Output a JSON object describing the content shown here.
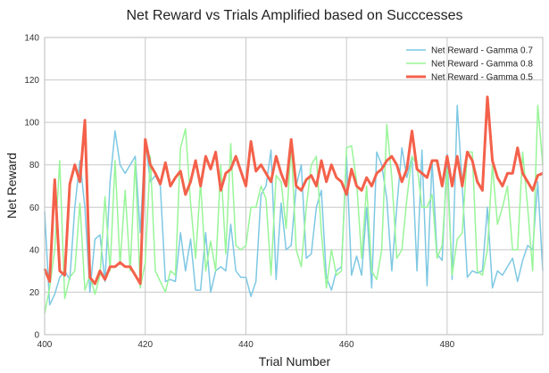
{
  "chart_data": {
    "type": "line",
    "title": "Net Reward vs Trials Amplified based on Succcesses",
    "xlabel": "Trial Number",
    "ylabel": "Net Reward",
    "xlim": [
      400,
      499
    ],
    "ylim": [
      0,
      140
    ],
    "xticks": [
      400,
      420,
      440,
      460,
      480
    ],
    "yticks": [
      0,
      20,
      40,
      60,
      80,
      100,
      120,
      140
    ],
    "grid": true,
    "legend_position": "top-right",
    "x_start": 400,
    "series": [
      {
        "name": "Net Reward - Gamma 0.7",
        "color": "#7ec8e3",
        "values": [
          58,
          14,
          19,
          27,
          30,
          26,
          60,
          82,
          60,
          20,
          45,
          47,
          25,
          72,
          96,
          80,
          76,
          80,
          84,
          48,
          92,
          72,
          75,
          70,
          25,
          26,
          25,
          48,
          30,
          45,
          21,
          21,
          48,
          20,
          30,
          32,
          30,
          52,
          30,
          27,
          27,
          18,
          25,
          66,
          70,
          87,
          26,
          62,
          40,
          42,
          70,
          80,
          36,
          38,
          60,
          68,
          27,
          21,
          30,
          32,
          84,
          28,
          37,
          28,
          60,
          22,
          86,
          80,
          64,
          30,
          60,
          88,
          74,
          84,
          30,
          87,
          23,
          82,
          38,
          35,
          85,
          26,
          108,
          70,
          27,
          30,
          29,
          30,
          60,
          22,
          30,
          28,
          32,
          36,
          25,
          35,
          42,
          40,
          72,
          30
        ]
      },
      {
        "name": "Net Reward - Gamma 0.8",
        "color": "#98f598",
        "values": [
          10,
          22,
          40,
          82,
          17,
          27,
          30,
          62,
          21,
          28,
          19,
          28,
          65,
          30,
          82,
          33,
          68,
          30,
          82,
          22,
          34,
          84,
          30,
          25,
          20,
          30,
          28,
          88,
          97,
          62,
          36,
          72,
          30,
          44,
          30,
          80,
          38,
          90,
          42,
          40,
          42,
          60,
          60,
          70,
          64,
          28,
          75,
          72,
          50,
          90,
          40,
          32,
          60,
          80,
          84,
          48,
          22,
          40,
          28,
          30,
          88,
          89,
          72,
          36,
          70,
          30,
          26,
          40,
          99,
          74,
          36,
          40,
          64,
          84,
          80,
          60,
          60,
          66,
          36,
          42,
          78,
          28,
          45,
          48,
          86,
          86,
          30,
          28,
          40,
          80,
          52,
          60,
          70,
          40,
          40,
          86,
          60,
          30,
          108,
          80
        ]
      },
      {
        "name": "Net Reward - Gamma 0.5",
        "color": "#f4614a",
        "values": [
          31,
          25,
          73,
          30,
          28,
          71,
          80,
          72,
          101,
          27,
          24,
          30,
          26,
          32,
          32,
          34,
          32,
          32,
          28,
          24,
          92,
          80,
          76,
          71,
          81,
          70,
          74,
          77,
          66,
          72,
          82,
          70,
          84,
          78,
          86,
          68,
          76,
          78,
          84,
          77,
          70,
          91,
          77,
          80,
          76,
          72,
          84,
          76,
          70,
          92,
          70,
          68,
          73,
          75,
          70,
          82,
          72,
          80,
          74,
          72,
          66,
          78,
          70,
          68,
          74,
          70,
          76,
          78,
          82,
          84,
          80,
          72,
          78,
          96,
          78,
          76,
          74,
          82,
          82,
          70,
          84,
          70,
          84,
          70,
          86,
          82,
          72,
          68,
          112,
          82,
          74,
          70,
          76,
          76,
          88,
          76,
          72,
          68,
          75,
          76
        ]
      }
    ]
  }
}
